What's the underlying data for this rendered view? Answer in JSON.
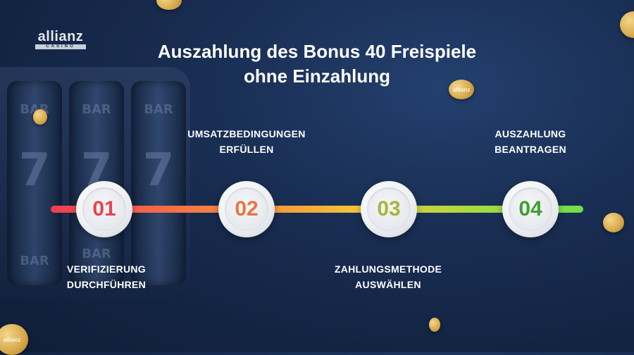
{
  "logo": {
    "word": "allianz",
    "sub": "CASINO"
  },
  "title_line1": "Auszahlung des Bonus 40 Freispiele",
  "title_line2": "ohne Einzahlung",
  "steps": [
    {
      "number": "01",
      "label": "VERIFIZIERUNG\nDURCHFÜHREN",
      "color": "#e8434d"
    },
    {
      "number": "02",
      "label": "UMSATZBEDINGUNGEN\nERFÜLLEN",
      "color": "#e8763d"
    },
    {
      "number": "03",
      "label": "ZAHLUNGSMETHODE\nAUSWÄHLEN",
      "color": "#a8b53a"
    },
    {
      "number": "04",
      "label": "AUSZAHLUNG\nBEANTRAGEN",
      "color": "#3f9e2e"
    }
  ],
  "decor": {
    "reel_bar": "BAR",
    "reel_seven": "7",
    "coin_text": "allianz"
  }
}
